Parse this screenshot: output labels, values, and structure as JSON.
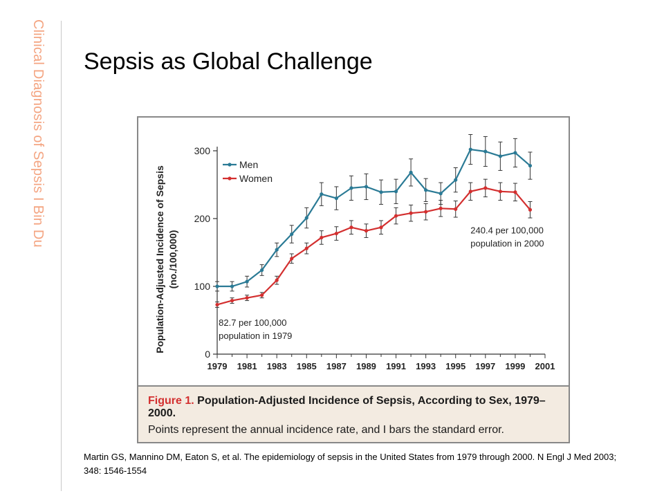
{
  "sidebar": {
    "title": "Clinical Diagnosis of Sepsis",
    "separator": "I",
    "author": "Bin Du"
  },
  "slide": {
    "title": "Sepsis as Global Challenge"
  },
  "figure": {
    "caption_label": "Figure 1.",
    "caption_title": "Population-Adjusted Incidence of Sepsis, According to Sex, 1979–2000.",
    "caption_text": "Points represent the annual incidence rate, and I bars the standard error."
  },
  "citation": {
    "text": "Martin GS, Mannino DM, Eaton S, et al. The epidemiology of sepsis in the United States from 1979 through 2000. N Engl J Med 2003; 348: 1546-1554"
  },
  "colors": {
    "men": "#2a7a95",
    "women": "#d32f2f",
    "accent_side": "#f4a582",
    "caption_bg": "#f3ebe1"
  },
  "chart_data": {
    "type": "line",
    "title": "",
    "xlabel": "",
    "ylabel": "Population-Adjusted Incidence of Sepsis (no./100,000)",
    "xlim": [
      1979,
      2001
    ],
    "ylim": [
      0,
      300
    ],
    "x_ticks": [
      1979,
      1981,
      1983,
      1985,
      1987,
      1989,
      1991,
      1993,
      1995,
      1997,
      1999,
      2001
    ],
    "y_ticks": [
      0,
      100,
      200,
      300
    ],
    "legend_position": "top-left",
    "x": [
      1979,
      1980,
      1981,
      1982,
      1983,
      1984,
      1985,
      1986,
      1987,
      1988,
      1989,
      1990,
      1991,
      1992,
      1993,
      1994,
      1995,
      1996,
      1997,
      1998,
      1999,
      2000
    ],
    "series": [
      {
        "name": "Men",
        "color": "#2a7a95",
        "values": [
          100,
          100,
          107,
          124,
          154,
          177,
          201,
          236,
          230,
          245,
          247,
          239,
          240,
          268,
          242,
          237,
          257,
          302,
          299,
          292,
          297,
          278
        ],
        "errors": [
          7,
          7,
          8,
          8,
          10,
          13,
          15,
          17,
          17,
          18,
          19,
          18,
          18,
          20,
          17,
          16,
          18,
          22,
          22,
          21,
          21,
          20
        ]
      },
      {
        "name": "Women",
        "color": "#d32f2f",
        "values": [
          73,
          79,
          83,
          87,
          109,
          141,
          156,
          172,
          178,
          187,
          182,
          187,
          204,
          208,
          210,
          215,
          214,
          240,
          245,
          240,
          239,
          213
        ],
        "errors": [
          4,
          4,
          4,
          4,
          6,
          7,
          8,
          10,
          10,
          10,
          10,
          10,
          12,
          12,
          12,
          12,
          12,
          13,
          13,
          13,
          13,
          12
        ]
      }
    ],
    "annotations": [
      {
        "text_line1": "82.7 per 100,000",
        "text_line2": "population in 1979",
        "x": 1979.1,
        "y": 42
      },
      {
        "text_line1": "240.4 per 100,000",
        "text_line2": "population in 2000",
        "x": 1996,
        "y": 178
      }
    ]
  }
}
